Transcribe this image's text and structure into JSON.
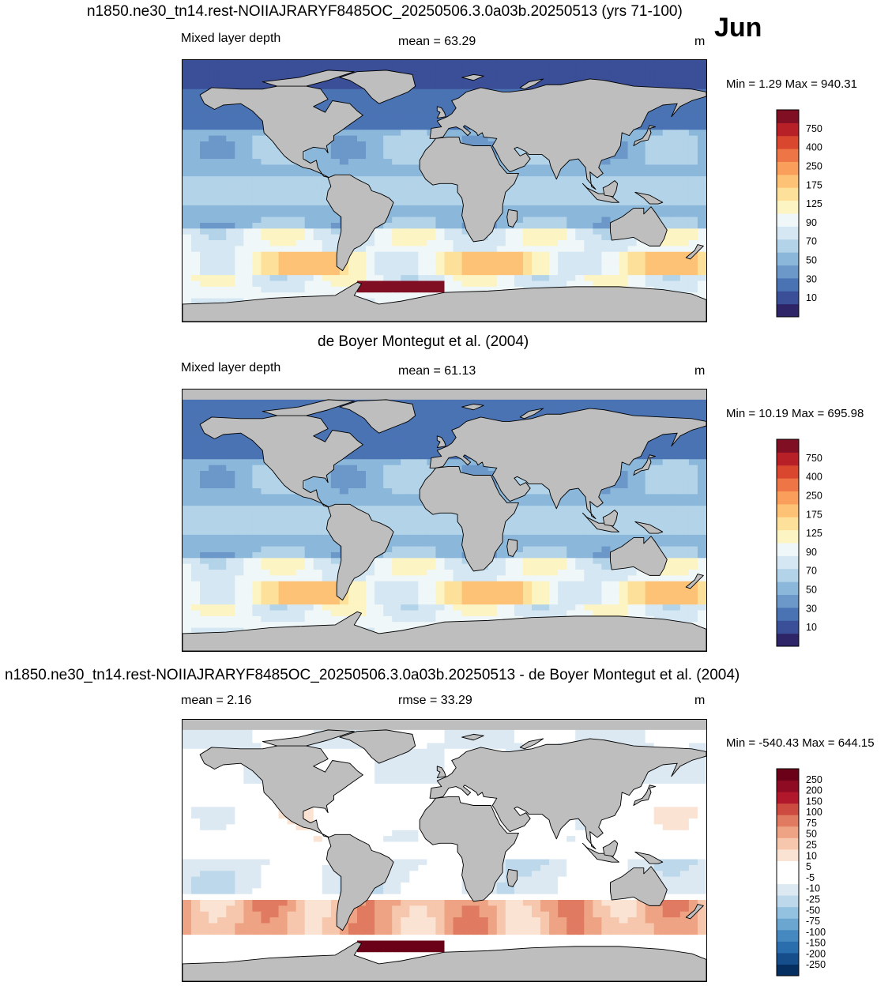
{
  "header": {
    "title": "n1850.ne30_tn14.rest-NOIIAJRARYF8485OC_20250506.3.0a03b.20250513 (yrs 71-100)",
    "month": "Jun"
  },
  "palettes": {
    "mld": [
      "#2d2567",
      "#3a4f97",
      "#4a73b4",
      "#6b98c9",
      "#8bb8da",
      "#b3d3e8",
      "#d4e7f2",
      "#f0f7f8",
      "#fdf4c3",
      "#fde09a",
      "#fdc275",
      "#f99f5b",
      "#ee7545",
      "#d9472f",
      "#b82028",
      "#800f24"
    ],
    "diff": [
      "#062f61",
      "#164e8c",
      "#2a6ead",
      "#4689c0",
      "#6aa6d0",
      "#93c2e0",
      "#bcd8ea",
      "#dce9f2",
      "#ffffff",
      "#ffffff",
      "#fbe3d4",
      "#f6c7ac",
      "#eea384",
      "#e07b62",
      "#cc4a3f",
      "#b2182b",
      "#8e0b23",
      "#6b0019"
    ],
    "land": "#bebebe"
  },
  "panels": [
    {
      "id": "model",
      "title": "",
      "left_label": "Mixed layer depth",
      "center_label": "mean =  63.29",
      "units": "m",
      "minmax": "Min =   1.29 Max = 940.31",
      "colorbar_labels": [
        "750",
        "400",
        "250",
        "175",
        "125",
        "90",
        "70",
        "50",
        "30",
        "10"
      ]
    },
    {
      "id": "obs",
      "title": "de Boyer Montegut et al. (2004)",
      "left_label": "Mixed layer depth",
      "center_label": "mean =  61.13",
      "units": "m",
      "minmax": "Min =  10.19 Max = 695.98",
      "colorbar_labels": [
        "750",
        "400",
        "250",
        "175",
        "125",
        "90",
        "70",
        "50",
        "30",
        "10"
      ]
    },
    {
      "id": "diff",
      "title": "n1850.ne30_tn14.rest-NOIIAJRARYF8485OC_20250506.3.0a03b.20250513 - de Boyer Montegut et al. (2004)",
      "left_label": "mean =   2.16",
      "center_label": "rmse =  33.29",
      "units": "m",
      "minmax": "Min = -540.43 Max = 644.15",
      "colorbar_labels": [
        "250",
        "200",
        "150",
        "100",
        "75",
        "50",
        "25",
        "10",
        "5",
        "-5",
        "-10",
        "-25",
        "-50",
        "-75",
        "-100",
        "-150",
        "-200",
        "-250"
      ]
    }
  ],
  "chart_data": [
    {
      "type": "heatmap",
      "title": "n1850.ne30_tn14.rest-NOIIAJRARYF8485OC_20250506.3.0a03b.20250513 (yrs 71-100)",
      "subtitle": "Mixed layer depth",
      "units": "m",
      "mean": 63.29,
      "min": 1.29,
      "max": 940.31,
      "levels": [
        10,
        20,
        30,
        40,
        50,
        60,
        70,
        80,
        90,
        100,
        125,
        150,
        175,
        200,
        250,
        300,
        400,
        500,
        750
      ],
      "month": "Jun"
    },
    {
      "type": "heatmap",
      "title": "de Boyer Montegut et al. (2004)",
      "subtitle": "Mixed layer depth",
      "units": "m",
      "mean": 61.13,
      "min": 10.19,
      "max": 695.98,
      "levels": [
        10,
        20,
        30,
        40,
        50,
        60,
        70,
        80,
        90,
        100,
        125,
        150,
        175,
        200,
        250,
        300,
        400,
        500,
        750
      ]
    },
    {
      "type": "heatmap",
      "title": "n1850.ne30_tn14.rest-NOIIAJRARYF8485OC_20250506.3.0a03b.20250513 - de Boyer Montegut et al. (2004)",
      "units": "m",
      "mean": 2.16,
      "rmse": 33.29,
      "min": -540.43,
      "max": 644.15,
      "levels": [
        -250,
        -200,
        -150,
        -100,
        -75,
        -50,
        -25,
        -10,
        -5,
        5,
        10,
        25,
        50,
        75,
        100,
        150,
        200,
        250
      ]
    }
  ]
}
